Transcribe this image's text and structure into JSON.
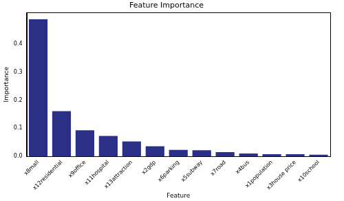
{
  "chart_data": {
    "type": "bar",
    "title": "Feature Importance",
    "x_label": "Feature",
    "y_label": "Importance",
    "categories": [
      "x8mall",
      "x12residential",
      "x9office",
      "x11hospital",
      "x13attraction",
      "x2gdp",
      "x6parking",
      "x5subway",
      "x7road",
      "x4bus",
      "x1population",
      "x3house price",
      "x10school"
    ],
    "values": [
      0.488,
      0.161,
      0.093,
      0.073,
      0.053,
      0.036,
      0.023,
      0.022,
      0.015,
      0.01,
      0.008,
      0.008,
      0.006
    ],
    "color": "#2b2f86",
    "ylim": [
      0,
      0.512
    ],
    "yticks": [
      {
        "value": 0,
        "label": "0.0"
      },
      0.1,
      0.2,
      0.3,
      0.4
    ],
    "grid": false
  }
}
